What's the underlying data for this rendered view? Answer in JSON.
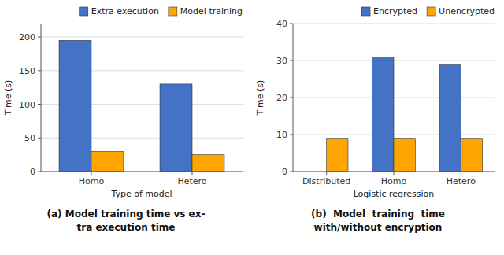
{
  "chart_data": [
    {
      "type": "bar",
      "categories": [
        "Homo",
        "Hetero"
      ],
      "series": [
        {
          "name": "Extra execution",
          "color": "#4472C4",
          "values": [
            195,
            130
          ]
        },
        {
          "name": "Model training",
          "color": "#FFA500",
          "values": [
            30,
            25
          ]
        }
      ],
      "ylabel": "Time (s)",
      "xlabel": "Type of model",
      "ylim": [
        0,
        220
      ],
      "yticks": [
        0,
        50,
        100,
        150,
        200
      ],
      "grid": true,
      "legend": "upper right",
      "annotations": [
        "(a) Model training time vs ex-",
        "tra execution time"
      ]
    },
    {
      "type": "bar",
      "categories": [
        "Distributed",
        "Homo",
        "Hetero"
      ],
      "series": [
        {
          "name": "Encrypted",
          "color": "#4472C4",
          "values": [
            0,
            31,
            29
          ]
        },
        {
          "name": "Unencrypted",
          "color": "#FFA500",
          "values": [
            9,
            9,
            9
          ]
        }
      ],
      "ylabel": "Time (s)",
      "xlabel": "Logistic regression",
      "ylim": [
        0,
        40
      ],
      "yticks": [
        0,
        10,
        20,
        30,
        40
      ],
      "grid": true,
      "legend": "upper right",
      "annotations": [
        "(b)  Model  training  time",
        "with/without encryption"
      ]
    }
  ]
}
